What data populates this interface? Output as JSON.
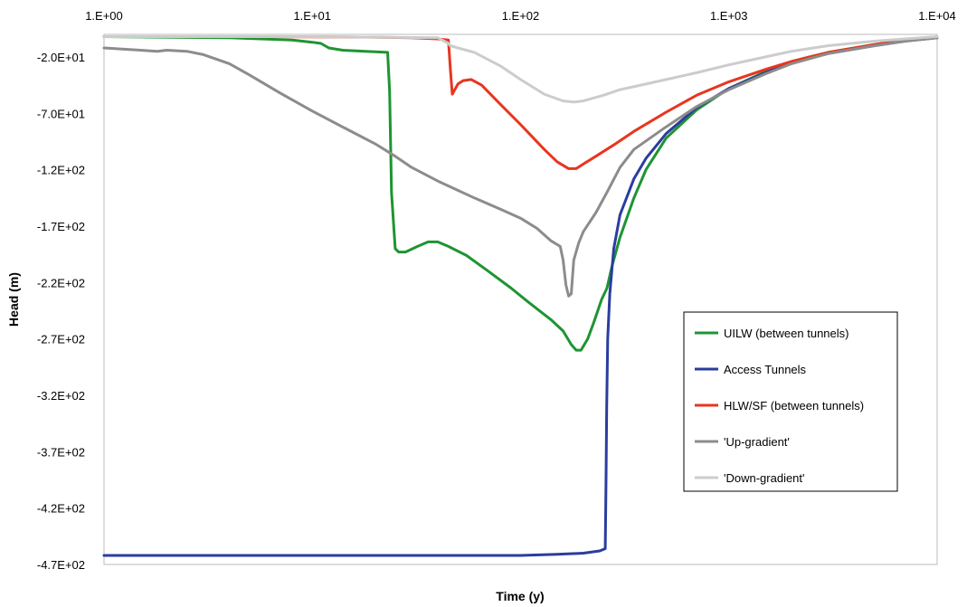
{
  "chart_data": {
    "type": "line",
    "title": "",
    "xlabel": "Time (y)",
    "ylabel": "Head (m)",
    "x_scale": "log",
    "xlim": [
      1,
      10000
    ],
    "ylim": [
      -470,
      0
    ],
    "grid": false,
    "legend_position": "bottom-right",
    "x_ticks": [
      {
        "value": 1,
        "label": "1.E+00"
      },
      {
        "value": 10,
        "label": "1.E+01"
      },
      {
        "value": 100,
        "label": "1.E+02"
      },
      {
        "value": 1000,
        "label": "1.E+03"
      },
      {
        "value": 10000,
        "label": "1.E+04"
      }
    ],
    "y_ticks": [
      {
        "value": -20,
        "label": "-2.0E+01"
      },
      {
        "value": -70,
        "label": "-7.0E+01"
      },
      {
        "value": -120,
        "label": "-1.2E+02"
      },
      {
        "value": -170,
        "label": "-1.7E+02"
      },
      {
        "value": -220,
        "label": "-2.2E+02"
      },
      {
        "value": -270,
        "label": "-2.7E+02"
      },
      {
        "value": -320,
        "label": "-3.2E+02"
      },
      {
        "value": -370,
        "label": "-3.7E+02"
      },
      {
        "value": -420,
        "label": "-4.2E+02"
      },
      {
        "value": -470,
        "label": "-4.7E+02"
      }
    ],
    "series": [
      {
        "name": "UILW (between tunnels)",
        "color": "#1e9432",
        "points": [
          [
            1,
            -2
          ],
          [
            2,
            -2.5
          ],
          [
            4,
            -3
          ],
          [
            8,
            -5
          ],
          [
            10,
            -7
          ],
          [
            11,
            -8
          ],
          [
            12,
            -12
          ],
          [
            14,
            -14
          ],
          [
            18,
            -15
          ],
          [
            23,
            -16
          ],
          [
            23.5,
            -50
          ],
          [
            24,
            -140
          ],
          [
            25,
            -190
          ],
          [
            26,
            -193
          ],
          [
            28,
            -193
          ],
          [
            32,
            -188
          ],
          [
            36,
            -184
          ],
          [
            40,
            -184
          ],
          [
            45,
            -188
          ],
          [
            55,
            -196
          ],
          [
            70,
            -210
          ],
          [
            90,
            -225
          ],
          [
            110,
            -238
          ],
          [
            140,
            -253
          ],
          [
            160,
            -263
          ],
          [
            175,
            -275
          ],
          [
            185,
            -280
          ],
          [
            195,
            -280
          ],
          [
            210,
            -270
          ],
          [
            225,
            -255
          ],
          [
            245,
            -235
          ],
          [
            260,
            -225
          ],
          [
            275,
            -205
          ],
          [
            300,
            -180
          ],
          [
            350,
            -145
          ],
          [
            400,
            -120
          ],
          [
            500,
            -92
          ],
          [
            700,
            -67
          ],
          [
            1000,
            -48
          ],
          [
            1500,
            -33
          ],
          [
            2000,
            -24
          ],
          [
            3000,
            -16
          ],
          [
            5000,
            -9
          ],
          [
            7000,
            -5
          ],
          [
            10000,
            -3
          ]
        ]
      },
      {
        "name": "Access Tunnels",
        "color": "#2a3d9e",
        "points": [
          [
            1,
            -462
          ],
          [
            10,
            -462
          ],
          [
            50,
            -462
          ],
          [
            100,
            -462
          ],
          [
            150,
            -461
          ],
          [
            200,
            -460
          ],
          [
            240,
            -458
          ],
          [
            255,
            -456
          ],
          [
            257,
            -400
          ],
          [
            259,
            -330
          ],
          [
            262,
            -270
          ],
          [
            268,
            -230
          ],
          [
            280,
            -190
          ],
          [
            300,
            -160
          ],
          [
            350,
            -128
          ],
          [
            400,
            -110
          ],
          [
            500,
            -88
          ],
          [
            700,
            -65
          ],
          [
            1000,
            -48
          ],
          [
            1500,
            -34
          ],
          [
            2000,
            -25
          ],
          [
            3000,
            -17
          ],
          [
            5000,
            -10
          ],
          [
            7000,
            -6
          ],
          [
            10000,
            -3
          ]
        ]
      },
      {
        "name": "HLW/SF (between tunnels)",
        "color": "#e8351f",
        "points": [
          [
            1,
            -2
          ],
          [
            5,
            -2
          ],
          [
            10,
            -2.2
          ],
          [
            20,
            -2.5
          ],
          [
            30,
            -3
          ],
          [
            40,
            -4
          ],
          [
            45,
            -5
          ],
          [
            46,
            -30
          ],
          [
            47,
            -53
          ],
          [
            48,
            -50
          ],
          [
            50,
            -44
          ],
          [
            53,
            -41
          ],
          [
            58,
            -40
          ],
          [
            65,
            -45
          ],
          [
            80,
            -62
          ],
          [
            100,
            -80
          ],
          [
            130,
            -102
          ],
          [
            150,
            -113
          ],
          [
            170,
            -119
          ],
          [
            185,
            -119
          ],
          [
            200,
            -115
          ],
          [
            230,
            -108
          ],
          [
            280,
            -98
          ],
          [
            350,
            -86
          ],
          [
            500,
            -69
          ],
          [
            700,
            -54
          ],
          [
            1000,
            -42
          ],
          [
            1500,
            -31
          ],
          [
            2000,
            -24
          ],
          [
            3000,
            -16
          ],
          [
            5000,
            -9
          ],
          [
            7000,
            -5
          ],
          [
            10000,
            -3
          ]
        ]
      },
      {
        "name": "'Up-gradient'",
        "color": "#8c8c8c",
        "points": [
          [
            1,
            -12
          ],
          [
            1.5,
            -14
          ],
          [
            1.8,
            -15
          ],
          [
            2,
            -14
          ],
          [
            2.5,
            -15
          ],
          [
            3,
            -18
          ],
          [
            4,
            -26
          ],
          [
            5,
            -36
          ],
          [
            7,
            -52
          ],
          [
            10,
            -68
          ],
          [
            15,
            -85
          ],
          [
            20,
            -97
          ],
          [
            25,
            -108
          ],
          [
            30,
            -118
          ],
          [
            40,
            -130
          ],
          [
            60,
            -145
          ],
          [
            80,
            -155
          ],
          [
            100,
            -163
          ],
          [
            120,
            -172
          ],
          [
            140,
            -183
          ],
          [
            155,
            -188
          ],
          [
            160,
            -200
          ],
          [
            165,
            -222
          ],
          [
            170,
            -232
          ],
          [
            175,
            -230
          ],
          [
            180,
            -200
          ],
          [
            190,
            -185
          ],
          [
            200,
            -175
          ],
          [
            230,
            -158
          ],
          [
            260,
            -140
          ],
          [
            300,
            -118
          ],
          [
            350,
            -102
          ],
          [
            500,
            -82
          ],
          [
            700,
            -64
          ],
          [
            1000,
            -49
          ],
          [
            1500,
            -35
          ],
          [
            2000,
            -26
          ],
          [
            3000,
            -17
          ],
          [
            5000,
            -10
          ],
          [
            7000,
            -6
          ],
          [
            10000,
            -3
          ]
        ]
      },
      {
        "name": "'Down-gradient'",
        "color": "#cccccc",
        "points": [
          [
            1,
            -2
          ],
          [
            10,
            -2
          ],
          [
            20,
            -2.5
          ],
          [
            40,
            -3
          ],
          [
            45,
            -8
          ],
          [
            46,
            -10
          ],
          [
            50,
            -12
          ],
          [
            60,
            -16
          ],
          [
            80,
            -28
          ],
          [
            100,
            -40
          ],
          [
            130,
            -53
          ],
          [
            160,
            -59
          ],
          [
            180,
            -60
          ],
          [
            200,
            -59
          ],
          [
            250,
            -54
          ],
          [
            300,
            -49
          ],
          [
            400,
            -44
          ],
          [
            500,
            -40
          ],
          [
            700,
            -34
          ],
          [
            1000,
            -27
          ],
          [
            1500,
            -20
          ],
          [
            2000,
            -15
          ],
          [
            3000,
            -10
          ],
          [
            5000,
            -6
          ],
          [
            7000,
            -4
          ],
          [
            10000,
            -2
          ]
        ]
      }
    ]
  }
}
